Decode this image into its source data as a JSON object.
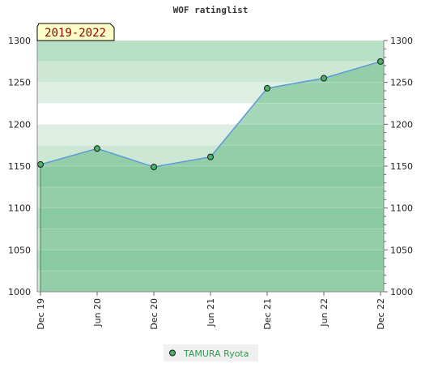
{
  "chart_data": {
    "type": "area",
    "title": "WOF ratinglist",
    "period_badge": "2019-2022",
    "x": [
      "Dec 19",
      "Jun 20",
      "Dec 20",
      "Jun 21",
      "Dec 21",
      "Jun 22",
      "Dec 22"
    ],
    "series": [
      {
        "name": "TAMURA Ryota",
        "values": [
          1152,
          1171,
          1149,
          1161,
          1243,
          1255,
          1275
        ]
      }
    ],
    "ylim": [
      1000,
      1300
    ],
    "yticks": [
      1000,
      1050,
      1100,
      1150,
      1200,
      1250,
      1300
    ],
    "grid": true,
    "legend_position": "bottom-center",
    "colors": {
      "line": "#5b9bd5",
      "area": "#6dbd8a",
      "marker": "#4caf6a",
      "badge_bg": "#ffffc8",
      "badge_text": "#8b0000",
      "legend_text": "#2e9e4f"
    }
  }
}
